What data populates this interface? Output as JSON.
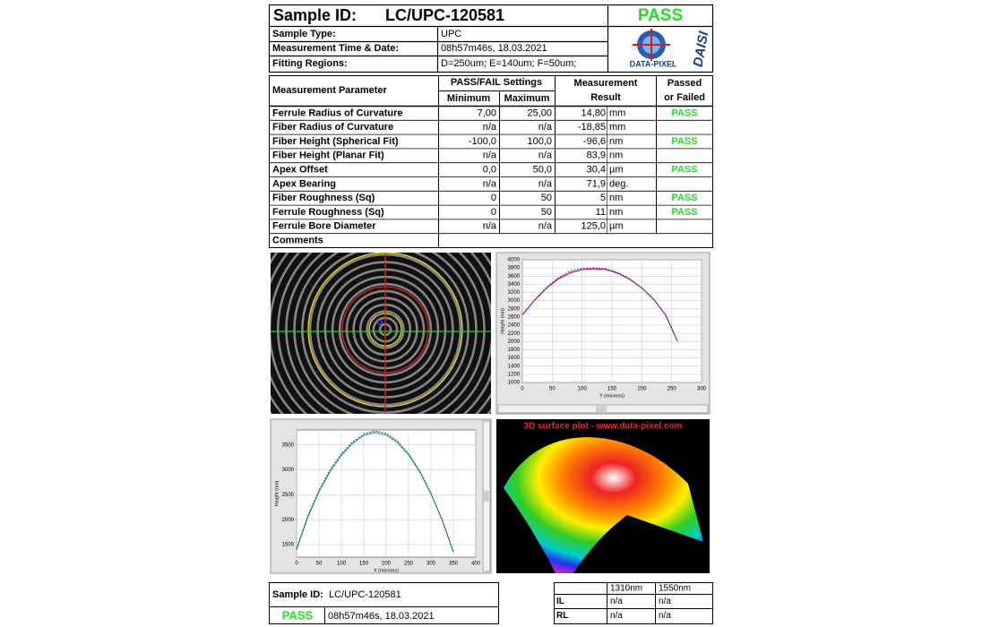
{
  "header": {
    "sample_id_label": "Sample ID:",
    "sample_id": "LC/UPC-120581",
    "status": "PASS",
    "info": [
      {
        "label": "Sample Type:",
        "value": "UPC"
      },
      {
        "label": "Measurement Time & Date:",
        "value": "08h57m46s, 18.03.2021"
      },
      {
        "label": "Fitting Regions:",
        "value": "D=250um;   E=140um;   F=50um;"
      }
    ],
    "logo": {
      "text": "DATA-PIXEL",
      "brand": "DAISI"
    }
  },
  "table": {
    "headers": {
      "parameter": "Measurement Parameter",
      "settings": "PASS/FAIL Settings",
      "minimum": "Minimum",
      "maximum": "Maximum",
      "result_1": "Measurement",
      "result_2": "Result",
      "passed_1": "Passed",
      "passed_2": "or Failed"
    },
    "rows": [
      {
        "parameter": "Ferrule Radius of Curvature",
        "minimum": "7,00",
        "maximum": "25,00",
        "result": "14,80",
        "unit": "mm",
        "status": "PASS"
      },
      {
        "parameter": "Fiber Radius of Curvature",
        "minimum": "n/a",
        "maximum": "n/a",
        "result": "-18,85",
        "unit": "mm"
      },
      {
        "parameter": "Fiber Height (Spherical Fit)",
        "minimum": "-100,0",
        "maximum": "100,0",
        "result": "-96,6",
        "unit": "nm",
        "status": "PASS"
      },
      {
        "parameter": "Fiber Height (Planar Fit)",
        "minimum": "n/a",
        "maximum": "n/a",
        "result": "83,9",
        "unit": "nm"
      },
      {
        "parameter": "Apex Offset",
        "minimum": "0,0",
        "maximum": "50,0",
        "result": "30,4",
        "unit": "µm",
        "status": "PASS"
      },
      {
        "parameter": "Apex Bearing",
        "minimum": "n/a",
        "maximum": "n/a",
        "result": "71,9",
        "unit": "deg."
      },
      {
        "parameter": "Fiber Roughness (Sq)",
        "minimum": "0",
        "maximum": "50",
        "result": "5",
        "unit": "nm",
        "status": "PASS"
      },
      {
        "parameter": "Ferrule Roughness (Sq)",
        "minimum": "0",
        "maximum": "50",
        "result": "11",
        "unit": "nm",
        "status": "PASS"
      },
      {
        "parameter": "Ferrule Bore Diameter",
        "minimum": "n/a",
        "maximum": "n/a",
        "result": "125,0",
        "unit": "µm"
      },
      {
        "parameter": "Comments"
      }
    ]
  },
  "surface_plot_title": "3D surface plot - www.data-pixel.com",
  "chart_data": [
    {
      "type": "line",
      "xlabel": "Y (microns)",
      "ylabel": "Height (nm)",
      "x": [
        0,
        20,
        40,
        60,
        80,
        100,
        120,
        140,
        160,
        180,
        200,
        220,
        240,
        260
      ],
      "series": [
        {
          "color": "#cc0033",
          "dashed": false,
          "values": [
            2650,
            3000,
            3300,
            3530,
            3680,
            3760,
            3780,
            3760,
            3670,
            3520,
            3310,
            3030,
            2650,
            2000
          ]
        },
        {
          "color": "#3344cc",
          "dashed": true,
          "values": [
            2660,
            3010,
            3320,
            3560,
            3720,
            3790,
            3800,
            3780,
            3690,
            3530,
            3310,
            3030,
            2640,
            2000
          ]
        }
      ],
      "xlim": [
        0,
        300
      ],
      "xticks": [
        0,
        50,
        100,
        150,
        200,
        250,
        300
      ],
      "ylim": [
        1000,
        4000
      ],
      "yticks": [
        1000,
        1200,
        1400,
        1600,
        1800,
        2000,
        2200,
        2400,
        2600,
        2800,
        3000,
        3200,
        3400,
        3600,
        3800,
        4000
      ],
      "grid": true
    },
    {
      "type": "line",
      "xlabel": "X (microns)",
      "ylabel": "Height (nm)",
      "x": [
        0,
        25,
        50,
        75,
        100,
        125,
        150,
        175,
        200,
        225,
        250,
        275,
        300,
        325,
        350
      ],
      "series": [
        {
          "color": "#22aa44",
          "dashed": false,
          "values": [
            1400,
            2050,
            2560,
            2970,
            3290,
            3530,
            3690,
            3750,
            3700,
            3550,
            3300,
            2960,
            2520,
            1990,
            1350
          ]
        },
        {
          "color": "#3344cc",
          "dashed": true,
          "values": [
            1420,
            2070,
            2590,
            3000,
            3320,
            3560,
            3720,
            3780,
            3730,
            3580,
            3320,
            2980,
            2530,
            2000,
            1360
          ]
        }
      ],
      "xlim": [
        0,
        400
      ],
      "xticks": [
        0,
        50,
        100,
        150,
        200,
        250,
        300,
        350,
        400
      ],
      "ylim": [
        1250,
        3800
      ],
      "yticks": [
        1500,
        2000,
        2500,
        3000,
        3500
      ],
      "grid": true
    }
  ],
  "footer": {
    "sample_id_label": "Sample ID:",
    "sample_id": "LC/UPC-120581",
    "status": "PASS",
    "datetime": "08h57m46s, 18.03.2021",
    "loss_table": {
      "columns": [
        "1310nm",
        "1550nm"
      ],
      "rows": [
        {
          "label": "IL",
          "values": [
            "n/a",
            "n/a"
          ]
        },
        {
          "label": "RL",
          "values": [
            "n/a",
            "n/a"
          ]
        }
      ]
    }
  }
}
